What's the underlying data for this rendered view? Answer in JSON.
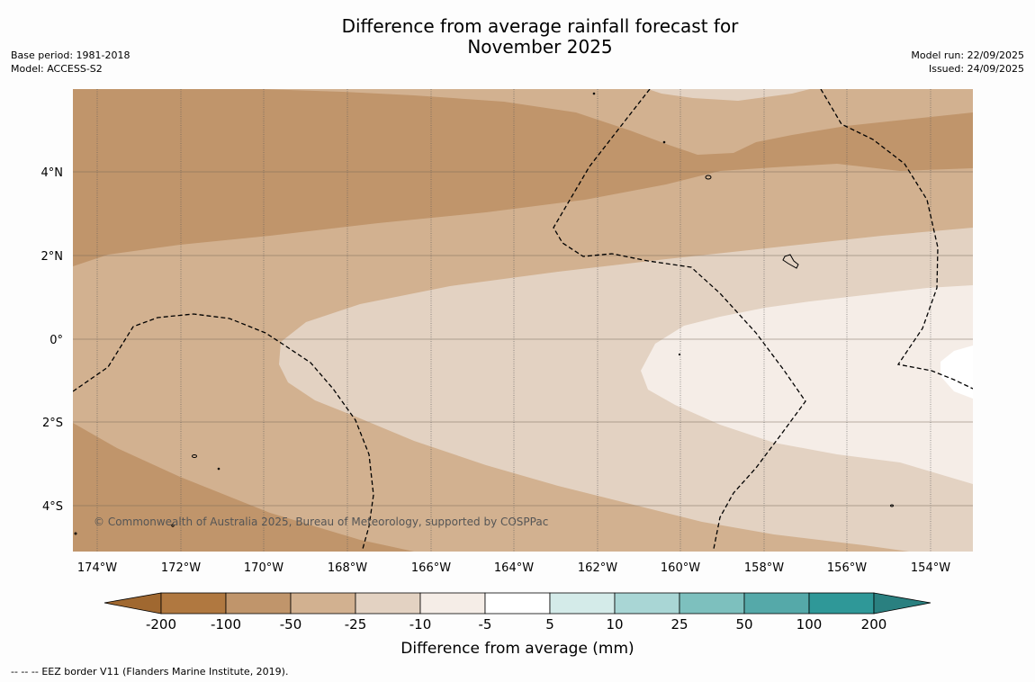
{
  "title": {
    "line1": "Difference from average rainfall forecast for",
    "line2": "November 2025"
  },
  "meta_left": {
    "base_period": "Base period: 1981-2018",
    "model": "Model: ACCESS-S2"
  },
  "meta_right": {
    "model_run": "Model run: 22/09/2025",
    "issued": "Issued: 24/09/2025"
  },
  "map": {
    "lat_labels": [
      "4°N",
      "2°N",
      "0°",
      "2°S",
      "4°S"
    ],
    "lon_labels": [
      "174°W",
      "172°W",
      "170°W",
      "168°W",
      "166°W",
      "164°W",
      "162°W",
      "160°W",
      "158°W",
      "156°W",
      "154°W"
    ],
    "copyright": "© Commonwealth of Australia 2025, Bureau of Meteorology, supported by COSPPac",
    "band_colors": [
      "#c0956b",
      "#d2b190",
      "#e3d2c2",
      "#f5ede7"
    ]
  },
  "colorbar": {
    "title": "Difference from average (mm)",
    "tick_labels": [
      "-200",
      "-100",
      "-50",
      "-25",
      "-10",
      "-5",
      "5",
      "10",
      "25",
      "50",
      "100",
      "200"
    ],
    "colors": [
      "#b07840",
      "#c0956b",
      "#d2b190",
      "#e3d2c2",
      "#f5ede7",
      "#ffffff",
      "#d4ebe9",
      "#a9d6d5",
      "#7dc0be",
      "#55a9a9",
      "#2f9898"
    ],
    "extend_low_color": "#a06830",
    "extend_high_color": "#2a8080"
  },
  "footer": {
    "legend_symbol": "--  --  --",
    "legend_text": "EEZ border V11 (Flanders Marine Institute, 2019)."
  }
}
